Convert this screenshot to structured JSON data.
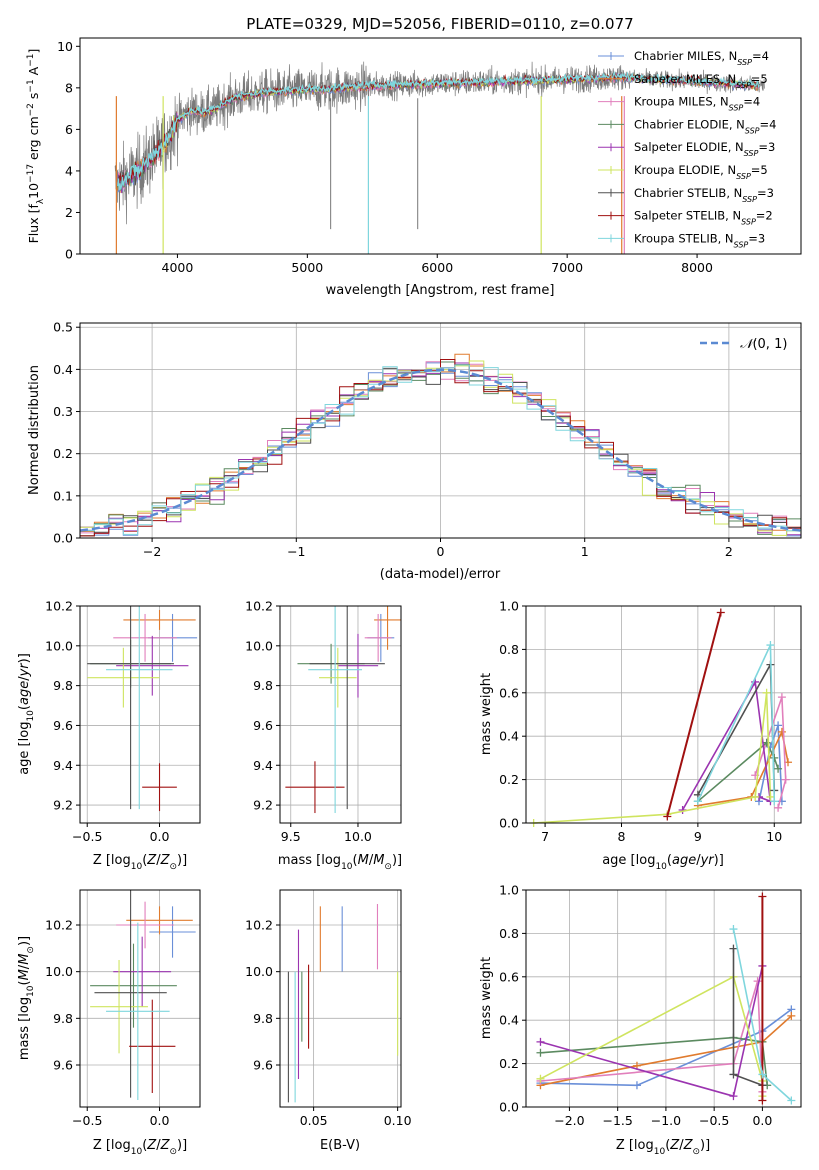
{
  "figure_title": "PLATE=0329, MJD=52056, FIBERID=0110, z=0.077",
  "series_colors": [
    "#6a8fd8",
    "#e07b2e",
    "#e17fbc",
    "#5b8a60",
    "#9b34b0",
    "#cfe45f",
    "#505050",
    "#a01010",
    "#7fd6dd"
  ],
  "chart_data": [
    {
      "id": "spectrum",
      "type": "line",
      "title": "PLATE=0329, MJD=52056, FIBERID=0110, z=0.077",
      "xlabel": "wavelength [Angstrom, rest frame]",
      "ylabel": "Flux [f_λ 10^-17 erg cm^-2 s^-1 A^-1]",
      "xlim": [
        3250,
        8800
      ],
      "ylim": [
        0,
        10.4
      ],
      "xticks": [
        4000,
        5000,
        6000,
        7000,
        8000
      ],
      "yticks": [
        0,
        2,
        4,
        6,
        8,
        10
      ],
      "grid": false,
      "legend_placement": "right",
      "legend": [
        "Chabrier MILES, N_SSP=4",
        "Salpeter MILES, N_SSP=5",
        "Kroupa MILES, N_SSP=4",
        "Chabrier ELODIE, N_SSP=4",
        "Salpeter ELODIE, N_SSP=3",
        "Kroupa ELODIE, N_SSP=5",
        "Chabrier STELIB, N_SSP=3",
        "Salpeter STELIB, N_SSP=2",
        "Kroupa STELIB, N_SSP=3"
      ],
      "model_continuum": {
        "x": [
          3540,
          3600,
          3700,
          3800,
          3900,
          4000,
          4100,
          4200,
          4300,
          4400,
          4500,
          4700,
          5000,
          5200,
          5500,
          6000,
          6500,
          7000,
          7400,
          8000,
          8500
        ],
        "y": [
          3.4,
          3.6,
          4.0,
          4.6,
          5.3,
          6.4,
          6.9,
          6.8,
          7.0,
          7.4,
          7.6,
          7.8,
          7.9,
          7.95,
          8.1,
          8.2,
          8.3,
          8.4,
          8.5,
          8.3,
          8.1
        ]
      }
    },
    {
      "id": "residuals",
      "type": "histogram",
      "xlabel": "(data-model)/error",
      "ylabel": "Normed distribution",
      "xlim": [
        -2.5,
        2.5
      ],
      "ylim": [
        0,
        0.51
      ],
      "xticks": [
        -2,
        -1,
        0,
        1,
        2
      ],
      "yticks": [
        0.0,
        0.1,
        0.2,
        0.3,
        0.4,
        0.5
      ],
      "grid": true,
      "legend_placement": "top-right",
      "reference_curve": "N(0,1)",
      "bin_width": 0.1
    },
    {
      "id": "age_vs_Z",
      "type": "errorbar",
      "xlabel": "Z [log10(Z/Z_sun)]",
      "ylabel": "age [log10(age/yr)]",
      "xlim": [
        -0.55,
        0.28
      ],
      "ylim": [
        9.11,
        10.2
      ],
      "xticks": [
        -0.5,
        0.0
      ],
      "yticks": [
        9.2,
        9.4,
        9.6,
        9.8,
        10.0,
        10.2
      ],
      "grid": true,
      "points": [
        {
          "x": 0.09,
          "y": 10.04,
          "xerr": 0.17,
          "yerr": 0.12
        },
        {
          "x": 0.0,
          "y": 10.13,
          "xerr": 0.25,
          "yerr": 0.05
        },
        {
          "x": -0.1,
          "y": 10.04,
          "xerr": 0.22,
          "yerr": 0.12
        },
        {
          "x": -0.2,
          "y": 9.91,
          "xerr": 0.28,
          "yerr": 0.12
        },
        {
          "x": -0.05,
          "y": 9.9,
          "xerr": 0.25,
          "yerr": 0.15
        },
        {
          "x": -0.25,
          "y": 9.84,
          "xerr": 0.25,
          "yerr": 0.15
        },
        {
          "x": -0.2,
          "y": 9.91,
          "xerr": 0.3,
          "yerr": 0.73
        },
        {
          "x": 0.0,
          "y": 9.29,
          "xerr": 0.12,
          "yerr": 0.12
        },
        {
          "x": -0.14,
          "y": 9.88,
          "xerr": 0.23,
          "yerr": 0.7
        }
      ]
    },
    {
      "id": "age_vs_mass",
      "type": "errorbar",
      "xlabel": "mass [log10(M/M_sun)]",
      "ylabel": "",
      "xlim": [
        9.42,
        10.32
      ],
      "ylim": [
        9.11,
        10.2
      ],
      "xticks": [
        9.5,
        10.0
      ],
      "yticks": [
        9.2,
        9.4,
        9.6,
        9.8,
        10.0,
        10.2
      ],
      "grid": true,
      "points": [
        {
          "x": 10.17,
          "y": 10.04,
          "xerr": 0.1,
          "yerr": 0.12
        },
        {
          "x": 10.22,
          "y": 10.13,
          "xerr": 0.1,
          "yerr": 0.15
        },
        {
          "x": 10.15,
          "y": 10.04,
          "xerr": 0.1,
          "yerr": 0.12
        },
        {
          "x": 9.8,
          "y": 9.91,
          "xerr": 0.25,
          "yerr": 0.1
        },
        {
          "x": 10.0,
          "y": 9.9,
          "xerr": 0.15,
          "yerr": 0.16
        },
        {
          "x": 9.85,
          "y": 9.84,
          "xerr": 0.14,
          "yerr": 0.15
        },
        {
          "x": 9.92,
          "y": 9.91,
          "xerr": 0.28,
          "yerr": 0.73
        },
        {
          "x": 9.68,
          "y": 9.29,
          "xerr": 0.22,
          "yerr": 0.13
        },
        {
          "x": 9.83,
          "y": 9.88,
          "xerr": 0.2,
          "yerr": 0.72
        }
      ]
    },
    {
      "id": "mass_weight_vs_age",
      "type": "line",
      "xlabel": "age [log10(age/yr)]",
      "ylabel": "mass weight",
      "xlim": [
        6.75,
        10.35
      ],
      "ylim": [
        0,
        1.0
      ],
      "xticks": [
        7,
        8,
        9,
        10
      ],
      "yticks": [
        0.0,
        0.2,
        0.4,
        0.6,
        0.8,
        1.0
      ],
      "grid": true,
      "series": [
        {
          "x": [
            9.8,
            9.95,
            10.05,
            10.1
          ],
          "y": [
            0.1,
            0.35,
            0.45,
            0.1
          ]
        },
        {
          "x": [
            9.0,
            9.7,
            10.1,
            10.18
          ],
          "y": [
            0.08,
            0.12,
            0.42,
            0.28
          ]
        },
        {
          "x": [
            9.75,
            10.1,
            10.15,
            10.05
          ],
          "y": [
            0.22,
            0.58,
            0.2,
            0.07
          ]
        },
        {
          "x": [
            9.0,
            9.9,
            10.0,
            10.05
          ],
          "y": [
            0.1,
            0.37,
            0.3,
            0.25
          ]
        },
        {
          "x": [
            8.8,
            9.75,
            9.95,
            9.8
          ],
          "y": [
            0.06,
            0.65,
            0.1,
            0.12
          ]
        },
        {
          "x": [
            6.85,
            8.6,
            9.75,
            9.9,
            9.95
          ],
          "y": [
            0.0,
            0.04,
            0.12,
            0.6,
            0.12
          ]
        },
        {
          "x": [
            9.0,
            9.95,
            10.0
          ],
          "y": [
            0.13,
            0.73,
            0.15
          ]
        },
        {
          "x": [
            8.6,
            9.3
          ],
          "y": [
            0.03,
            0.97
          ]
        },
        {
          "x": [
            9.0,
            9.95,
            10.0
          ],
          "y": [
            0.1,
            0.82,
            0.1
          ]
        }
      ]
    },
    {
      "id": "mass_vs_Z",
      "type": "errorbar",
      "xlabel": "Z [log10(Z/Z_sun)]",
      "ylabel": "mass [log10(M/M_sun)]",
      "xlim": [
        -0.55,
        0.28
      ],
      "ylim": [
        9.42,
        10.35
      ],
      "xticks": [
        -0.5,
        0.0
      ],
      "yticks": [
        9.6,
        9.8,
        10.0,
        10.2
      ],
      "grid": true,
      "points": [
        {
          "x": 0.09,
          "y": 10.17,
          "xerr": 0.16,
          "yerr": 0.11
        },
        {
          "x": 0.0,
          "y": 10.22,
          "xerr": 0.23,
          "yerr": 0.06
        },
        {
          "x": -0.1,
          "y": 10.2,
          "xerr": 0.2,
          "yerr": 0.1
        },
        {
          "x": -0.18,
          "y": 9.94,
          "xerr": 0.3,
          "yerr": 0.18
        },
        {
          "x": -0.12,
          "y": 10.0,
          "xerr": 0.2,
          "yerr": 0.15
        },
        {
          "x": -0.28,
          "y": 9.85,
          "xerr": 0.2,
          "yerr": 0.2
        },
        {
          "x": -0.2,
          "y": 9.91,
          "xerr": 0.25,
          "yerr": 0.45
        },
        {
          "x": -0.05,
          "y": 9.68,
          "xerr": 0.16,
          "yerr": 0.2
        },
        {
          "x": -0.15,
          "y": 9.83,
          "xerr": 0.22,
          "yerr": 0.38
        }
      ]
    },
    {
      "id": "mass_vs_ebv",
      "type": "errorbar",
      "xlabel": "E(B-V)",
      "ylabel": "",
      "xlim": [
        0.03,
        0.102
      ],
      "ylim": [
        9.42,
        10.35
      ],
      "xticks": [
        0.05,
        0.1
      ],
      "yticks": [
        9.6,
        9.8,
        10.0,
        10.2
      ],
      "grid": true,
      "points": [
        {
          "x": 0.067,
          "y": 10.14,
          "yerr": 0.14
        },
        {
          "x": 0.054,
          "y": 10.14,
          "yerr": 0.14
        },
        {
          "x": 0.088,
          "y": 10.15,
          "yerr": 0.14
        },
        {
          "x": 0.043,
          "y": 9.85,
          "yerr": 0.15
        },
        {
          "x": 0.041,
          "y": 9.86,
          "yerr": 0.32
        },
        {
          "x": 0.1,
          "y": 9.82,
          "yerr": 0.18
        },
        {
          "x": 0.035,
          "y": 9.72,
          "yerr": 0.28
        },
        {
          "x": 0.047,
          "y": 9.85,
          "yerr": 0.18
        },
        {
          "x": 0.039,
          "y": 9.72,
          "yerr": 0.28
        }
      ]
    },
    {
      "id": "mass_weight_vs_Z",
      "type": "line",
      "xlabel": "Z [log10(Z/Z_sun)]",
      "ylabel": "mass weight",
      "xlim": [
        -2.45,
        0.4
      ],
      "ylim": [
        0,
        1.0
      ],
      "xticks": [
        -2.0,
        -1.5,
        -1.0,
        -0.5,
        0.0
      ],
      "yticks": [
        0.0,
        0.2,
        0.4,
        0.6,
        0.8,
        1.0
      ],
      "grid": true,
      "series": [
        {
          "x": [
            -2.3,
            -1.3,
            0.0,
            0.3
          ],
          "y": [
            0.11,
            0.1,
            0.35,
            0.45
          ]
        },
        {
          "x": [
            -2.3,
            -1.3,
            0.0,
            0.3
          ],
          "y": [
            0.1,
            0.19,
            0.3,
            0.42
          ]
        },
        {
          "x": [
            -2.3,
            -0.3,
            -0.05,
            0.0
          ],
          "y": [
            0.12,
            0.2,
            0.58,
            0.07
          ]
        },
        {
          "x": [
            -2.3,
            -0.3,
            0.0,
            0.05
          ],
          "y": [
            0.25,
            0.32,
            0.3,
            0.1
          ]
        },
        {
          "x": [
            -2.3,
            -0.3,
            0.0
          ],
          "y": [
            0.3,
            0.05,
            0.65
          ]
        },
        {
          "x": [
            -2.3,
            -0.3,
            0.0,
            0.0
          ],
          "y": [
            0.13,
            0.6,
            0.12,
            0.05
          ]
        },
        {
          "x": [
            -0.3,
            -0.3,
            0.0
          ],
          "y": [
            0.73,
            0.15,
            0.1
          ]
        },
        {
          "x": [
            0.0,
            0.0
          ],
          "y": [
            0.97,
            0.03
          ]
        },
        {
          "x": [
            -0.3,
            0.0,
            0.3
          ],
          "y": [
            0.82,
            0.15,
            0.03
          ]
        }
      ]
    }
  ]
}
